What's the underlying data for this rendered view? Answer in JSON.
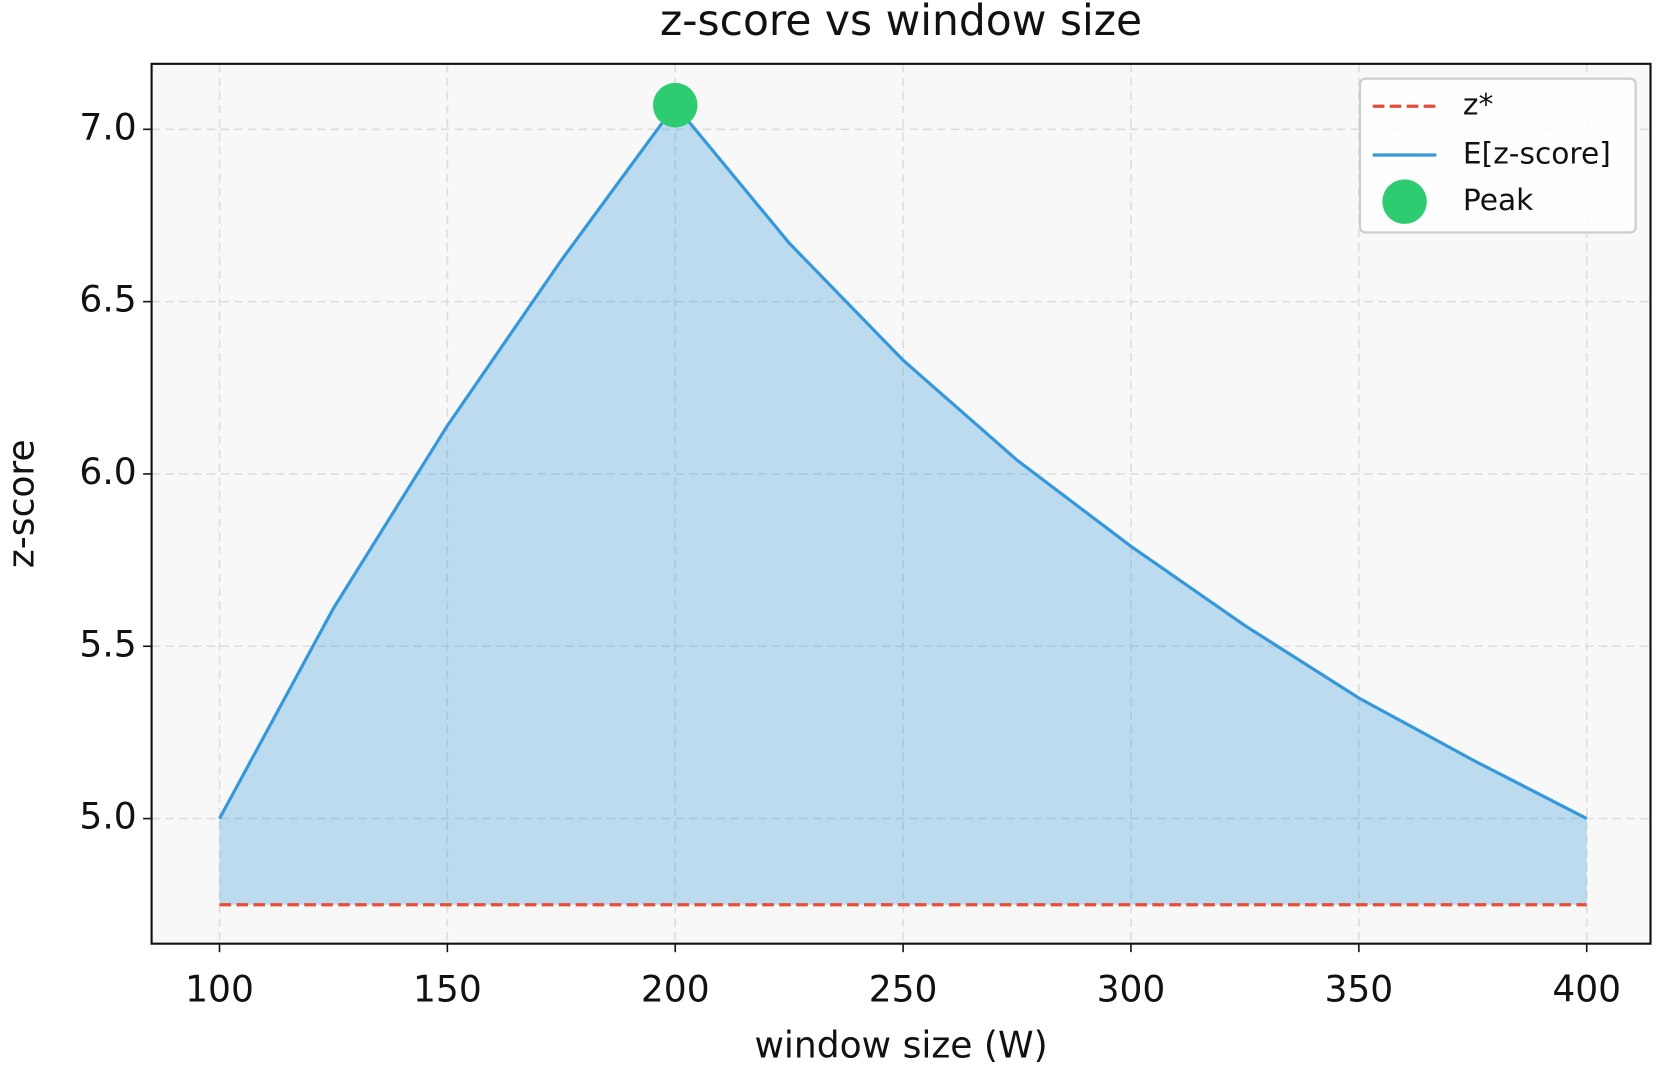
{
  "chart_data": {
    "type": "area",
    "title": "z-score vs window size",
    "xlabel": "window size (W)",
    "ylabel": "z-score",
    "x": [
      100,
      125,
      150,
      175,
      200,
      225,
      250,
      275,
      300,
      325,
      350,
      375,
      400
    ],
    "series": [
      {
        "name": "E[z-score]",
        "color": "#3498db",
        "values": [
          5.0,
          5.61,
          6.14,
          6.62,
          7.07,
          6.67,
          6.33,
          6.04,
          5.79,
          5.56,
          5.35,
          5.17,
          5.0
        ]
      }
    ],
    "threshold": {
      "name": "z*",
      "value": 4.75,
      "color": "#e74c3c"
    },
    "peak": {
      "name": "Peak",
      "x": 200,
      "y": 7.07,
      "color": "#2ecc71"
    },
    "xlim": [
      85.1,
      414
    ],
    "ylim": [
      4.637,
      7.19
    ],
    "xticks": [
      100,
      150,
      200,
      250,
      300,
      350,
      400
    ],
    "yticks": [
      {
        "value": 5,
        "label": "5.0"
      },
      5.5,
      {
        "value": 6,
        "label": "6.0"
      },
      6.5,
      {
        "value": 7,
        "label": "7.0"
      }
    ],
    "grid": true,
    "legend": "upper right"
  }
}
